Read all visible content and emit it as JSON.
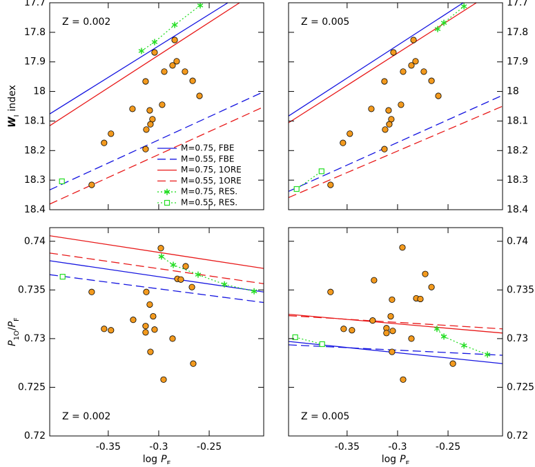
{
  "chart_data": [
    {
      "type": "line",
      "annotation": "Z = 0.002",
      "annotation_position": "top left",
      "xlim": [
        -0.408,
        -0.196
      ],
      "ylim": [
        18.4,
        17.7
      ],
      "xticks": [
        -0.35,
        -0.3,
        -0.25
      ],
      "yticks": [
        17.7,
        17.8,
        17.9,
        18,
        18.1,
        18.2,
        18.3,
        18.4
      ],
      "xticklabels": false,
      "ytick_side": "left",
      "ylabel": [
        "W",
        "I",
        "index"
      ],
      "legend": "lower right",
      "series": [
        {
          "name": "M=0.75, FBE",
          "color": "#1414e0",
          "style": "solid",
          "x": [
            -0.408,
            -0.2315
          ],
          "y": [
            18.076,
            17.7
          ]
        },
        {
          "name": "M=0.55, FBE",
          "color": "#1414e0",
          "style": "dashed",
          "x": [
            -0.408,
            -0.196
          ],
          "y": [
            18.333,
            18.001
          ]
        },
        {
          "name": "M=0.75, 1ORE",
          "color": "#e81818",
          "style": "solid",
          "x": [
            -0.408,
            -0.2199
          ],
          "y": [
            18.116,
            17.7
          ]
        },
        {
          "name": "M=0.55, 1ORE",
          "color": "#e81818",
          "style": "dashed",
          "x": [
            -0.408,
            -0.196
          ],
          "y": [
            18.381,
            18.052
          ]
        },
        {
          "name": "M=0.75, RES.",
          "color": "#22dd22",
          "style": "dotted",
          "marker": "star",
          "x": [
            -0.3171,
            -0.3041,
            -0.2842,
            -0.2589
          ],
          "y": [
            17.863,
            17.833,
            17.775,
            17.709
          ]
        },
        {
          "name": "M=0.55, RES.",
          "color": "#22dd22",
          "style": "dotted",
          "marker": "square",
          "x": [
            -0.3959
          ],
          "y": [
            18.304
          ]
        },
        {
          "color": "#f39a1e",
          "style": "none",
          "marker": "circle",
          "x": [
            -0.2842,
            -0.3041,
            -0.2822,
            -0.2863,
            -0.2945,
            -0.274,
            -0.2664,
            -0.313,
            -0.2596,
            -0.2966,
            -0.326,
            -0.3089,
            -0.3062,
            -0.3082,
            -0.3123,
            -0.3473,
            -0.3541,
            -0.313,
            -0.3664
          ],
          "y": [
            17.826,
            17.868,
            17.898,
            17.912,
            17.933,
            17.933,
            17.964,
            17.966,
            18.015,
            18.045,
            18.059,
            18.064,
            18.094,
            18.111,
            18.129,
            18.143,
            18.174,
            18.195,
            18.316
          ]
        }
      ]
    },
    {
      "type": "line",
      "annotation": "Z = 0.005",
      "annotation_position": "top left",
      "xlim": [
        -0.408,
        -0.196
      ],
      "ylim": [
        18.4,
        17.7
      ],
      "xticks": [
        -0.35,
        -0.3,
        -0.25
      ],
      "yticks": [
        17.7,
        17.8,
        17.9,
        18,
        18.1,
        18.2,
        18.3,
        18.4
      ],
      "xticklabels": false,
      "ytick_side": "right",
      "series": [
        {
          "color": "#1414e0",
          "style": "solid",
          "x": [
            -0.408,
            -0.2349
          ],
          "y": [
            18.083,
            17.7
          ]
        },
        {
          "color": "#1414e0",
          "style": "dashed",
          "x": [
            -0.408,
            -0.196
          ],
          "y": [
            18.338,
            18.013
          ]
        },
        {
          "color": "#e81818",
          "style": "solid",
          "x": [
            -0.408,
            -0.2219
          ],
          "y": [
            18.106,
            17.7
          ]
        },
        {
          "color": "#e81818",
          "style": "dashed",
          "x": [
            -0.408,
            -0.196
          ],
          "y": [
            18.359,
            18.05
          ]
        },
        {
          "color": "#22dd22",
          "style": "dotted",
          "marker": "star",
          "x": [
            -0.2603,
            -0.2541,
            -0.2342
          ],
          "y": [
            17.789,
            17.768,
            17.712
          ]
        },
        {
          "color": "#22dd22",
          "style": "dotted",
          "marker": "square",
          "x": [
            -0.4,
            -0.3753
          ],
          "y": [
            18.33,
            18.27
          ]
        },
        {
          "color": "#f39a1e",
          "style": "none",
          "marker": "circle",
          "x": [
            -0.2842,
            -0.3041,
            -0.2822,
            -0.2863,
            -0.2945,
            -0.274,
            -0.2664,
            -0.313,
            -0.2596,
            -0.2966,
            -0.326,
            -0.3089,
            -0.3062,
            -0.3082,
            -0.3123,
            -0.3473,
            -0.3541,
            -0.313,
            -0.3664
          ],
          "y": [
            17.826,
            17.868,
            17.898,
            17.912,
            17.933,
            17.933,
            17.964,
            17.966,
            18.015,
            18.045,
            18.059,
            18.064,
            18.094,
            18.111,
            18.129,
            18.143,
            18.174,
            18.195,
            18.316
          ]
        }
      ]
    },
    {
      "type": "line",
      "annotation": "Z = 0.002",
      "annotation_position": "bottom left",
      "xlim": [
        -0.408,
        -0.196
      ],
      "ylim": [
        0.72,
        0.7414
      ],
      "xticks": [
        -0.35,
        -0.3,
        -0.25
      ],
      "yticks": [
        0.72,
        0.725,
        0.73,
        0.735,
        0.74
      ],
      "xticklabels": true,
      "ytick_side": "left",
      "xlabel": [
        "log",
        "P",
        "F"
      ],
      "ylabel": [
        "P",
        "1O",
        "/",
        "P",
        "F"
      ],
      "series": [
        {
          "color": "#1414e0",
          "style": "solid",
          "x": [
            -0.408,
            -0.196
          ],
          "y": [
            0.738,
            0.73479
          ]
        },
        {
          "color": "#1414e0",
          "style": "dashed",
          "x": [
            -0.408,
            -0.196
          ],
          "y": [
            0.73657,
            0.73371
          ]
        },
        {
          "color": "#e81818",
          "style": "solid",
          "x": [
            -0.408,
            -0.196
          ],
          "y": [
            0.74057,
            0.73721
          ]
        },
        {
          "color": "#e81818",
          "style": "dashed",
          "x": [
            -0.408,
            -0.196
          ],
          "y": [
            0.73879,
            0.73564
          ]
        },
        {
          "color": "#22dd22",
          "style": "dotted",
          "marker": "star",
          "x": [
            -0.2973,
            -0.2856,
            -0.261,
            -0.2349,
            -0.2055
          ],
          "y": [
            0.73843,
            0.73757,
            0.73657,
            0.73557,
            0.73486
          ]
        },
        {
          "color": "#22dd22",
          "style": "dotted",
          "marker": "square",
          "x": [
            -0.3952
          ],
          "y": [
            0.73636
          ]
        },
        {
          "color": "#f39a1e",
          "style": "none",
          "marker": "circle",
          "x": [
            -0.2979,
            -0.3664,
            -0.3123,
            -0.3089,
            -0.3055,
            -0.313,
            -0.313,
            -0.2733,
            -0.2815,
            -0.2781,
            -0.3253,
            -0.3541,
            -0.3473,
            -0.2863,
            -0.3041,
            -0.3082,
            -0.2952,
            -0.2658,
            -0.2671
          ],
          "y": [
            0.73929,
            0.73479,
            0.73479,
            0.7335,
            0.73229,
            0.73129,
            0.73064,
            0.73743,
            0.73614,
            0.73607,
            0.73193,
            0.731,
            0.73086,
            0.73,
            0.73093,
            0.72864,
            0.72579,
            0.72743,
            0.73529
          ]
        }
      ]
    },
    {
      "type": "line",
      "annotation": "Z = 0.005",
      "annotation_position": "bottom left",
      "xlim": [
        -0.408,
        -0.196
      ],
      "ylim": [
        0.72,
        0.7414
      ],
      "xticks": [
        -0.35,
        -0.3,
        -0.25
      ],
      "yticks": [
        0.72,
        0.725,
        0.73,
        0.735,
        0.74
      ],
      "xticklabels": true,
      "ytick_side": "right",
      "xlabel": [
        "log",
        "P",
        "F"
      ],
      "series": [
        {
          "color": "#1414e0",
          "style": "solid",
          "x": [
            -0.408,
            -0.196
          ],
          "y": [
            0.72971,
            0.72743
          ]
        },
        {
          "color": "#1414e0",
          "style": "dashed",
          "x": [
            -0.408,
            -0.196
          ],
          "y": [
            0.72936,
            0.72829
          ]
        },
        {
          "color": "#e81818",
          "style": "solid",
          "x": [
            -0.408,
            -0.196
          ],
          "y": [
            0.7325,
            0.73057
          ]
        },
        {
          "color": "#e81818",
          "style": "dashed",
          "x": [
            -0.408,
            -0.196
          ],
          "y": [
            0.73236,
            0.731
          ]
        },
        {
          "color": "#22dd22",
          "style": "dotted",
          "marker": "star",
          "x": [
            -0.261,
            -0.2541,
            -0.2342,
            -0.211
          ],
          "y": [
            0.731,
            0.73021,
            0.72929,
            0.72836
          ]
        },
        {
          "color": "#22dd22",
          "style": "dotted",
          "marker": "square",
          "x": [
            -0.4014,
            -0.3747
          ],
          "y": [
            0.73014,
            0.72943
          ]
        },
        {
          "color": "#f39a1e",
          "style": "none",
          "marker": "circle",
          "x": [
            -0.3664,
            -0.2952,
            -0.3233,
            -0.2726,
            -0.2664,
            -0.2815,
            -0.2774,
            -0.3055,
            -0.3068,
            -0.3247,
            -0.3534,
            -0.3452,
            -0.311,
            -0.311,
            -0.3048,
            -0.2863,
            -0.3055,
            -0.2945,
            -0.2452
          ],
          "y": [
            0.73479,
            0.73936,
            0.736,
            0.73664,
            0.73529,
            0.73414,
            0.73407,
            0.734,
            0.73229,
            0.73186,
            0.731,
            0.73086,
            0.73107,
            0.73057,
            0.73079,
            0.73,
            0.72864,
            0.72579,
            0.72743
          ]
        }
      ]
    }
  ]
}
